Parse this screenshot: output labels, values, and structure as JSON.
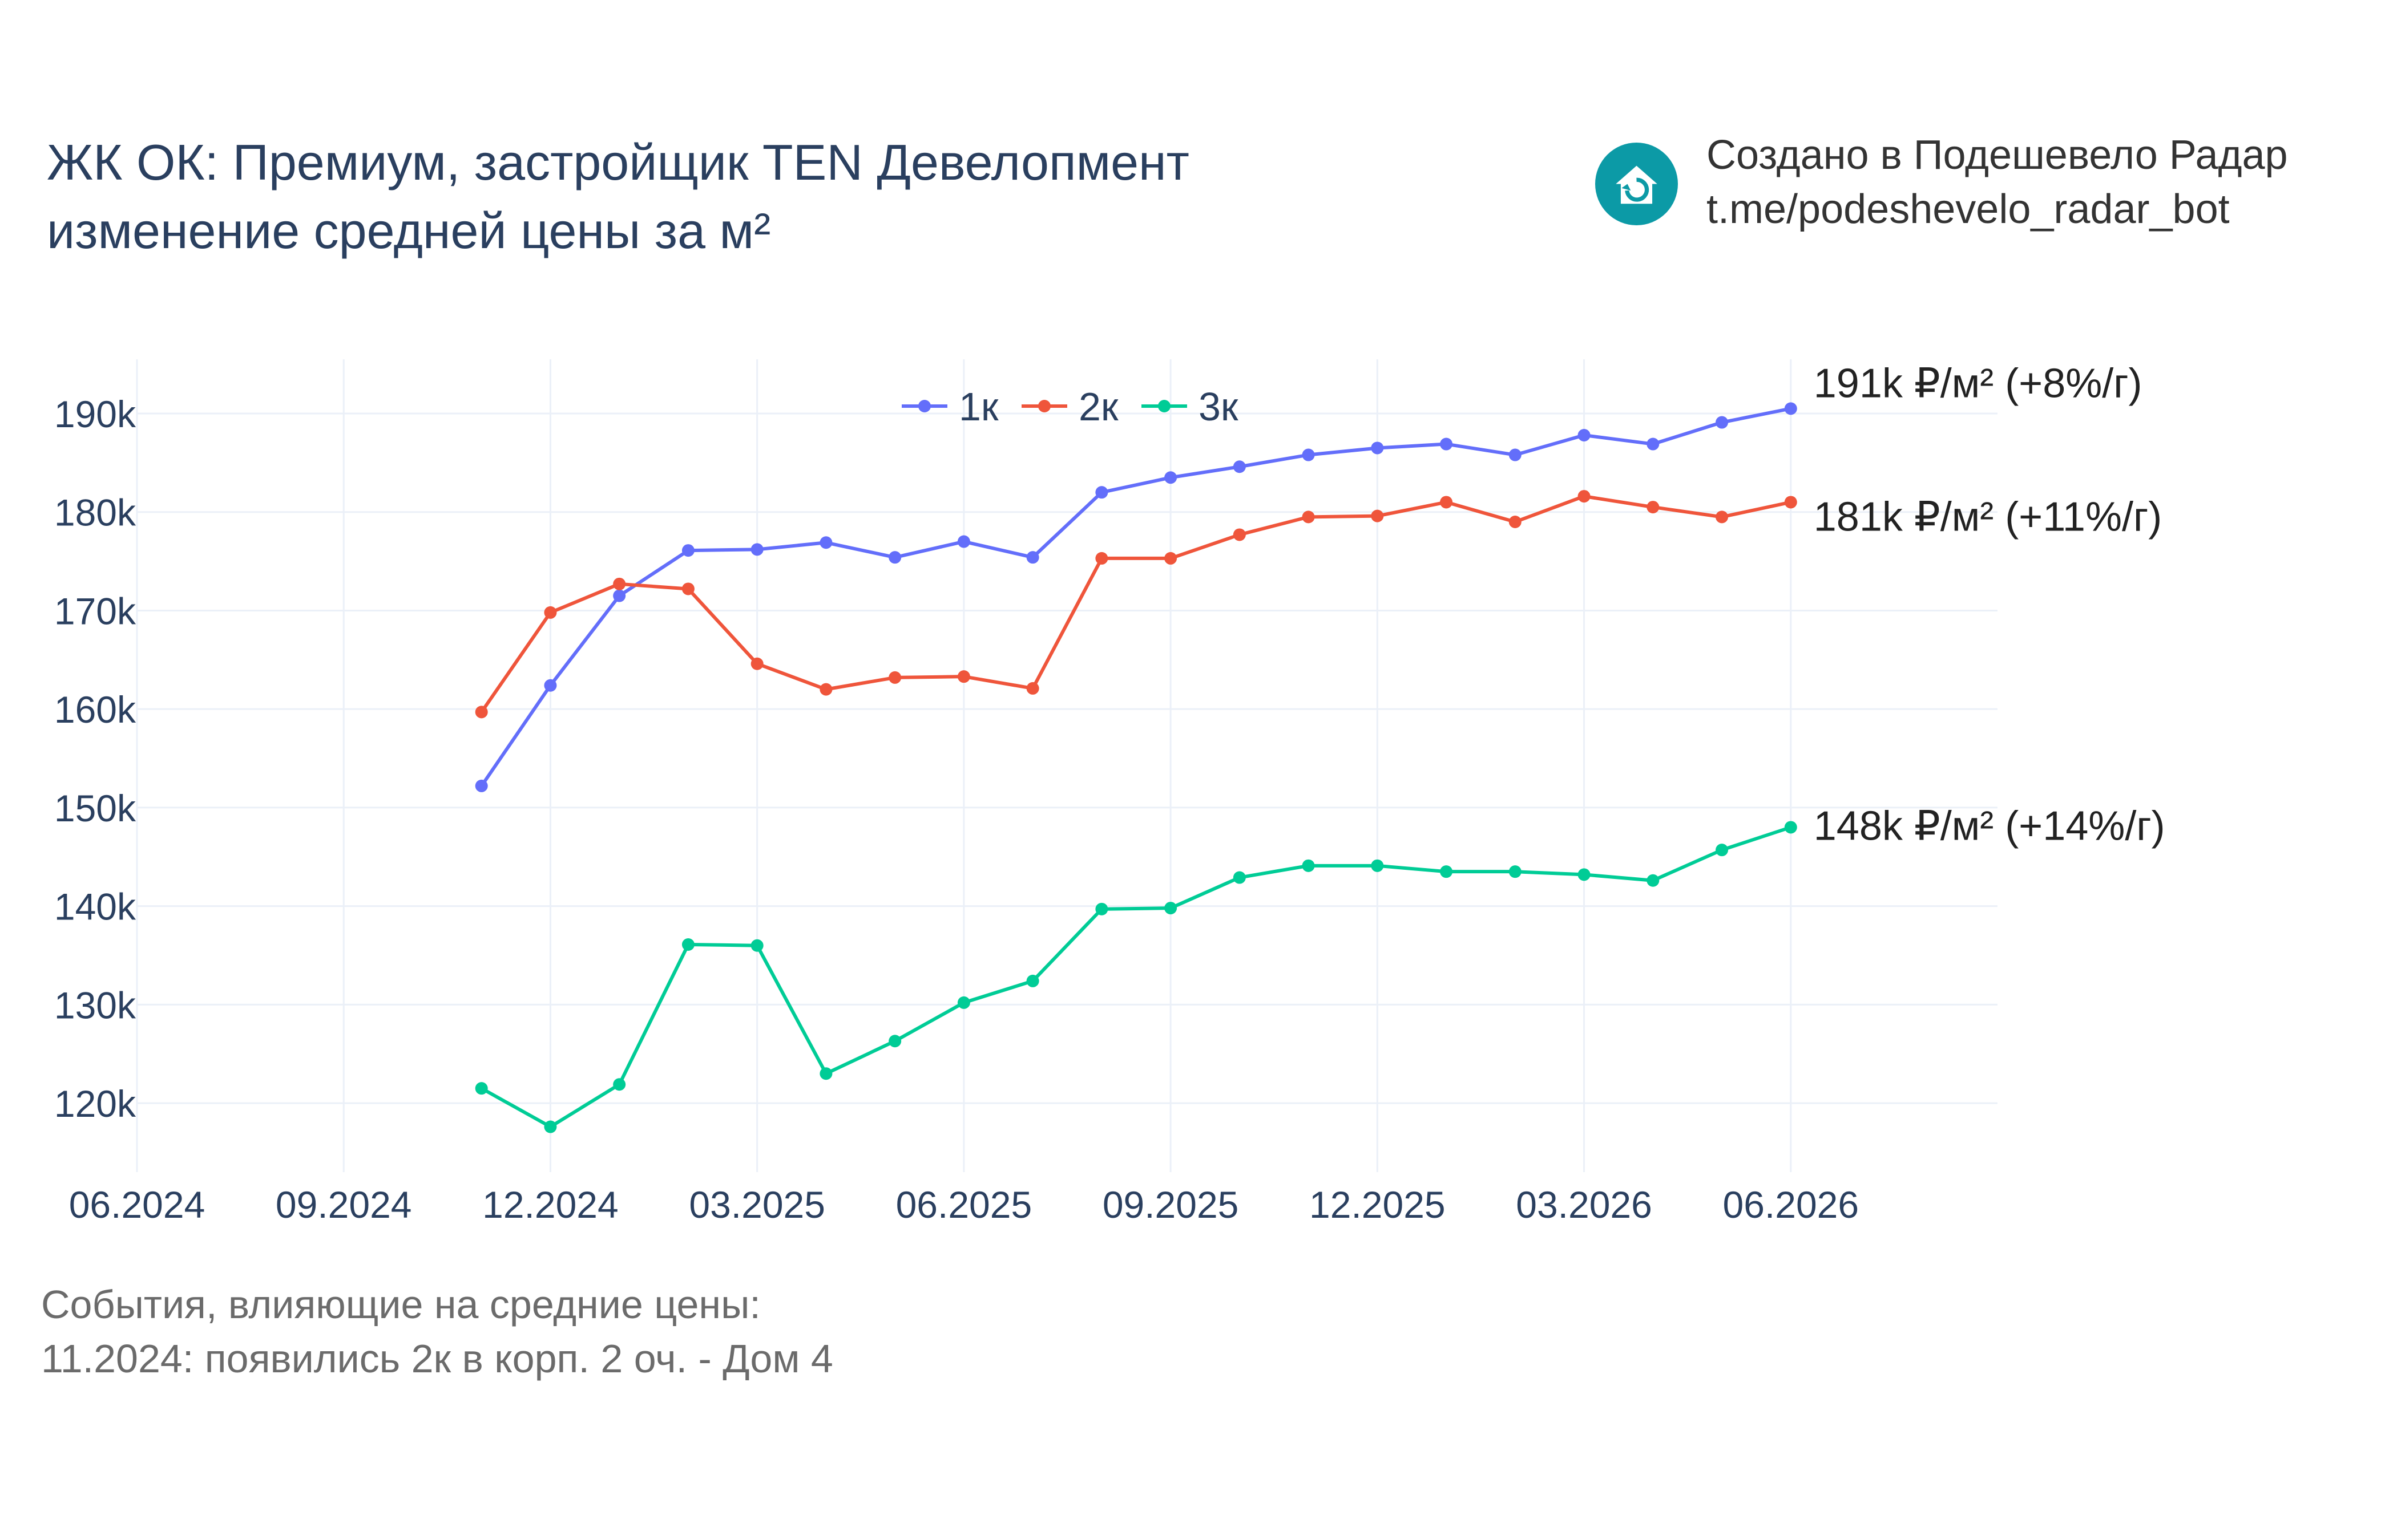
{
  "header": {
    "title_line1": "ЖК ОК: Премиум, застройщик TEN Девелопмент",
    "title_line2": "изменение средней цены за м²",
    "credit_line1": "Создано в Подешевело Радар",
    "credit_line2": "t.me/podeshevelo_radar_bot",
    "logo_icon": "house-refresh-icon",
    "logo_color": "#0c9aa6"
  },
  "events": {
    "heading": "События, влияющие на средние цены:",
    "items": [
      "11.2024: появились 2к в корп. 2 оч. - Дом 4"
    ]
  },
  "chart_data": {
    "type": "line",
    "x_ticks": [
      "06.2024",
      "09.2024",
      "12.2024",
      "03.2025",
      "06.2025",
      "09.2025",
      "12.2025",
      "03.2026",
      "06.2026"
    ],
    "y_ticks": [
      "120k",
      "130k",
      "140k",
      "150k",
      "160k",
      "170k",
      "180k",
      "190k"
    ],
    "y_tick_values": [
      120000,
      130000,
      140000,
      150000,
      160000,
      170000,
      180000,
      190000
    ],
    "ylim": [
      113000,
      195500
    ],
    "xlim": [
      "2024-06",
      "2026-09"
    ],
    "grid": true,
    "legend_position": "top-center",
    "x": [
      "2024-11",
      "2024-12",
      "2025-01",
      "2025-02",
      "2025-03",
      "2025-04",
      "2025-05",
      "2025-06",
      "2025-07",
      "2025-08",
      "2025-09",
      "2025-10",
      "2025-11",
      "2025-12",
      "2026-01",
      "2026-02",
      "2026-03",
      "2026-04",
      "2026-05",
      "2026-06"
    ],
    "series": [
      {
        "name": "1к",
        "color": "#636efa",
        "values": [
          152200,
          162400,
          171500,
          176100,
          176200,
          176900,
          175400,
          177000,
          175400,
          182000,
          183500,
          184600,
          185800,
          186500,
          186900,
          185800,
          187800,
          186900,
          189100,
          190500
        ],
        "end_label": "191k ₽/м² (+8%/г)"
      },
      {
        "name": "2к",
        "color": "#ef553b",
        "values": [
          159700,
          169800,
          172700,
          172200,
          164600,
          162000,
          163200,
          163300,
          162100,
          175300,
          175300,
          177700,
          179500,
          179600,
          181000,
          179000,
          181600,
          180500,
          179500,
          181000
        ],
        "end_label": "181k ₽/м² (+11%/г)"
      },
      {
        "name": "3к",
        "color": "#00cc96",
        "values": [
          121500,
          117600,
          121900,
          136100,
          136000,
          123000,
          126300,
          130200,
          132400,
          139700,
          139800,
          142900,
          144100,
          144100,
          143500,
          143500,
          143200,
          142600,
          145700,
          148000
        ],
        "end_label": "148k ₽/м² (+14%/г)"
      }
    ]
  }
}
